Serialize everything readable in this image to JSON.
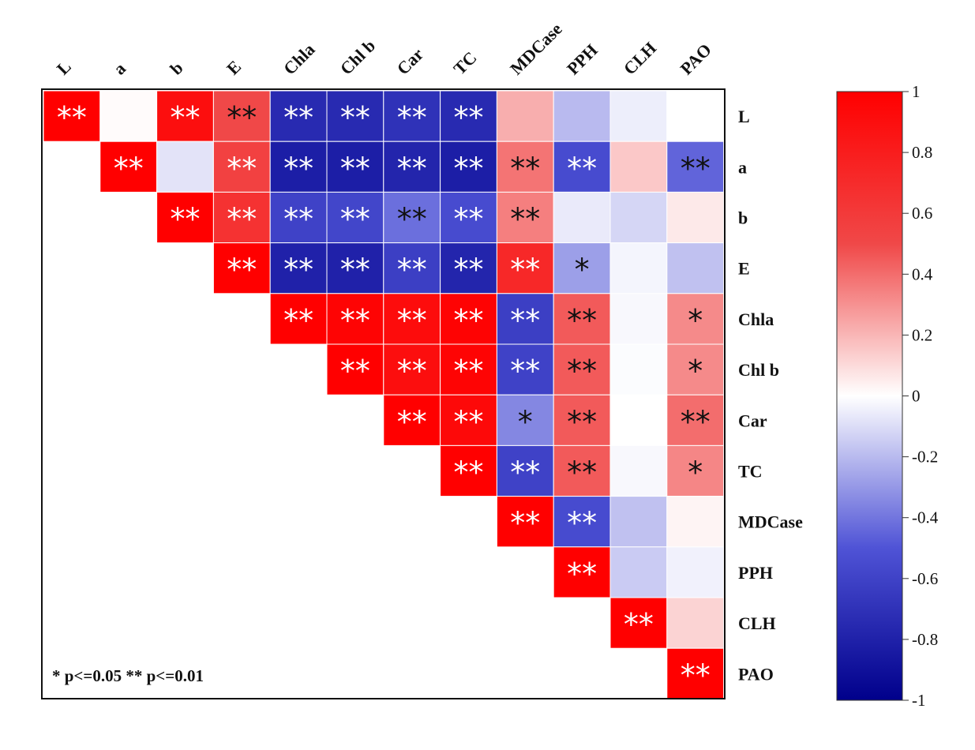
{
  "chart_data": {
    "type": "heatmap",
    "variables": [
      "L",
      "a",
      "b",
      "E",
      "Chla",
      "Chl b",
      "Car",
      "TC",
      "MDCase",
      "PPH",
      "CLH",
      "PAO"
    ],
    "matrix_layout": "upper-triangle",
    "cells": [
      {
        "row": "L",
        "col": "L",
        "value": 1.0,
        "sig": "**"
      },
      {
        "row": "L",
        "col": "a",
        "value": 0.01,
        "sig": ""
      },
      {
        "row": "L",
        "col": "b",
        "value": 0.9,
        "sig": "**"
      },
      {
        "row": "L",
        "col": "E",
        "value": 0.5,
        "sig": "**"
      },
      {
        "row": "L",
        "col": "Chla",
        "value": -0.75,
        "sig": "**"
      },
      {
        "row": "L",
        "col": "Chl b",
        "value": -0.75,
        "sig": "**"
      },
      {
        "row": "L",
        "col": "Car",
        "value": -0.7,
        "sig": "**"
      },
      {
        "row": "L",
        "col": "TC",
        "value": -0.75,
        "sig": "**"
      },
      {
        "row": "L",
        "col": "MDCase",
        "value": 0.22,
        "sig": ""
      },
      {
        "row": "L",
        "col": "PPH",
        "value": -0.2,
        "sig": ""
      },
      {
        "row": "L",
        "col": "CLH",
        "value": -0.05,
        "sig": ""
      },
      {
        "row": "L",
        "col": "PAO",
        "value": 0.0,
        "sig": ""
      },
      {
        "row": "a",
        "col": "a",
        "value": 1.0,
        "sig": "**"
      },
      {
        "row": "a",
        "col": "b",
        "value": -0.08,
        "sig": ""
      },
      {
        "row": "a",
        "col": "E",
        "value": 0.55,
        "sig": "**"
      },
      {
        "row": "a",
        "col": "Chla",
        "value": -0.82,
        "sig": "**"
      },
      {
        "row": "a",
        "col": "Chl b",
        "value": -0.82,
        "sig": "**"
      },
      {
        "row": "a",
        "col": "Car",
        "value": -0.78,
        "sig": "**"
      },
      {
        "row": "a",
        "col": "TC",
        "value": -0.82,
        "sig": "**"
      },
      {
        "row": "a",
        "col": "MDCase",
        "value": 0.38,
        "sig": "**"
      },
      {
        "row": "a",
        "col": "PPH",
        "value": -0.55,
        "sig": "**"
      },
      {
        "row": "a",
        "col": "CLH",
        "value": 0.15,
        "sig": ""
      },
      {
        "row": "a",
        "col": "PAO",
        "value": -0.45,
        "sig": "**"
      },
      {
        "row": "b",
        "col": "b",
        "value": 1.0,
        "sig": "**"
      },
      {
        "row": "b",
        "col": "E",
        "value": 0.65,
        "sig": "**"
      },
      {
        "row": "b",
        "col": "Chla",
        "value": -0.6,
        "sig": "**"
      },
      {
        "row": "b",
        "col": "Chl b",
        "value": -0.58,
        "sig": "**"
      },
      {
        "row": "b",
        "col": "Car",
        "value": -0.42,
        "sig": "**"
      },
      {
        "row": "b",
        "col": "TC",
        "value": -0.55,
        "sig": "**"
      },
      {
        "row": "b",
        "col": "MDCase",
        "value": 0.35,
        "sig": "**"
      },
      {
        "row": "b",
        "col": "PPH",
        "value": -0.06,
        "sig": ""
      },
      {
        "row": "b",
        "col": "CLH",
        "value": -0.12,
        "sig": ""
      },
      {
        "row": "b",
        "col": "PAO",
        "value": 0.06,
        "sig": ""
      },
      {
        "row": "E",
        "col": "E",
        "value": 1.0,
        "sig": "**"
      },
      {
        "row": "E",
        "col": "Chla",
        "value": -0.8,
        "sig": "**"
      },
      {
        "row": "E",
        "col": "Chl b",
        "value": -0.8,
        "sig": "**"
      },
      {
        "row": "E",
        "col": "Car",
        "value": -0.62,
        "sig": "**"
      },
      {
        "row": "E",
        "col": "TC",
        "value": -0.78,
        "sig": "**"
      },
      {
        "row": "E",
        "col": "MDCase",
        "value": 0.72,
        "sig": "**"
      },
      {
        "row": "E",
        "col": "PPH",
        "value": -0.28,
        "sig": "*"
      },
      {
        "row": "E",
        "col": "CLH",
        "value": -0.03,
        "sig": ""
      },
      {
        "row": "E",
        "col": "PAO",
        "value": -0.18,
        "sig": ""
      },
      {
        "row": "Chla",
        "col": "Chla",
        "value": 1.0,
        "sig": "**"
      },
      {
        "row": "Chla",
        "col": "Chl b",
        "value": 0.97,
        "sig": "**"
      },
      {
        "row": "Chla",
        "col": "Car",
        "value": 0.92,
        "sig": "**"
      },
      {
        "row": "Chla",
        "col": "TC",
        "value": 0.98,
        "sig": "**"
      },
      {
        "row": "Chla",
        "col": "MDCase",
        "value": -0.62,
        "sig": "**"
      },
      {
        "row": "Chla",
        "col": "PPH",
        "value": 0.45,
        "sig": "**"
      },
      {
        "row": "Chla",
        "col": "CLH",
        "value": -0.02,
        "sig": ""
      },
      {
        "row": "Chla",
        "col": "PAO",
        "value": 0.32,
        "sig": "*"
      },
      {
        "row": "Chl b",
        "col": "Chl b",
        "value": 1.0,
        "sig": "**"
      },
      {
        "row": "Chl b",
        "col": "Car",
        "value": 0.9,
        "sig": "**"
      },
      {
        "row": "Chl b",
        "col": "TC",
        "value": 0.97,
        "sig": "**"
      },
      {
        "row": "Chl b",
        "col": "MDCase",
        "value": -0.6,
        "sig": "**"
      },
      {
        "row": "Chl b",
        "col": "PPH",
        "value": 0.45,
        "sig": "**"
      },
      {
        "row": "Chl b",
        "col": "CLH",
        "value": -0.01,
        "sig": ""
      },
      {
        "row": "Chl b",
        "col": "PAO",
        "value": 0.32,
        "sig": "*"
      },
      {
        "row": "Car",
        "col": "Car",
        "value": 1.0,
        "sig": "**"
      },
      {
        "row": "Car",
        "col": "TC",
        "value": 0.94,
        "sig": "**"
      },
      {
        "row": "Car",
        "col": "MDCase",
        "value": -0.35,
        "sig": "*"
      },
      {
        "row": "Car",
        "col": "PPH",
        "value": 0.45,
        "sig": "**"
      },
      {
        "row": "Car",
        "col": "CLH",
        "value": 0.0,
        "sig": ""
      },
      {
        "row": "Car",
        "col": "PAO",
        "value": 0.4,
        "sig": "**"
      },
      {
        "row": "TC",
        "col": "TC",
        "value": 1.0,
        "sig": "**"
      },
      {
        "row": "TC",
        "col": "MDCase",
        "value": -0.6,
        "sig": "**"
      },
      {
        "row": "TC",
        "col": "PPH",
        "value": 0.45,
        "sig": "**"
      },
      {
        "row": "TC",
        "col": "CLH",
        "value": -0.02,
        "sig": ""
      },
      {
        "row": "TC",
        "col": "PAO",
        "value": 0.33,
        "sig": "*"
      },
      {
        "row": "MDCase",
        "col": "MDCase",
        "value": 1.0,
        "sig": "**"
      },
      {
        "row": "MDCase",
        "col": "PPH",
        "value": -0.55,
        "sig": "**"
      },
      {
        "row": "MDCase",
        "col": "CLH",
        "value": -0.18,
        "sig": ""
      },
      {
        "row": "MDCase",
        "col": "PAO",
        "value": 0.03,
        "sig": ""
      },
      {
        "row": "PPH",
        "col": "PPH",
        "value": 1.0,
        "sig": "**"
      },
      {
        "row": "PPH",
        "col": "CLH",
        "value": -0.15,
        "sig": ""
      },
      {
        "row": "PPH",
        "col": "PAO",
        "value": -0.04,
        "sig": ""
      },
      {
        "row": "CLH",
        "col": "CLH",
        "value": 1.0,
        "sig": "**"
      },
      {
        "row": "CLH",
        "col": "PAO",
        "value": 0.12,
        "sig": ""
      },
      {
        "row": "PAO",
        "col": "PAO",
        "value": 1.0,
        "sig": "**"
      }
    ],
    "colorbar": {
      "min": -1,
      "max": 1,
      "ticks": [
        "1",
        "0.8",
        "0.6",
        "0.4",
        "0.2",
        "0",
        "-0.2",
        "-0.4",
        "-0.6",
        "-0.8",
        "-1"
      ],
      "colors": {
        "low": "#00008b",
        "mid_low": "#4f53d6",
        "mid": "#ffffff",
        "mid_high": "#f04848",
        "high": "#ff0000"
      }
    },
    "annotation": "* p<=0.05  ** p<=0.01",
    "star_colors": {
      "on_strong": "#ffffff",
      "on_light": "#111111"
    }
  }
}
